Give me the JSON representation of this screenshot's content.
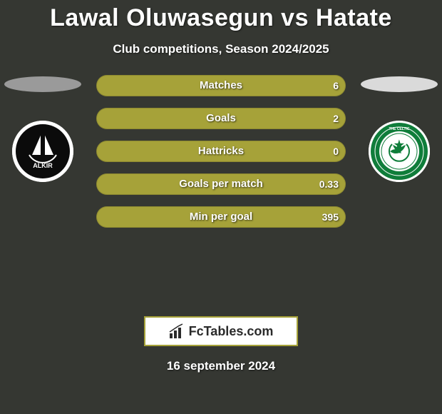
{
  "title": "Lawal Oluwasegun vs Hatate",
  "subtitle": "Club competitions, Season 2024/2025",
  "date": "16 september 2024",
  "logo_text": "FcTables.com",
  "background_color": "#353732",
  "left_player": {
    "oval_color": "#9a9a9a",
    "club_badge_bg": "#ffffff",
    "club_badge_inner": "#0b0b0b",
    "club_name": "FALKIRK"
  },
  "right_player": {
    "oval_color": "#dadada",
    "club_badge_bg": "#ffffff",
    "club_badge_ring": "#0f7d3a",
    "club_badge_inner": "#ffffff"
  },
  "bars": {
    "track_color": "#a6a239",
    "left_fill_color": "#a6a239",
    "right_fill_color": "#a6a239",
    "height": 30,
    "radius": 15,
    "gap": 16,
    "label_fontsize": 15,
    "value_fontsize": 14,
    "rows": [
      {
        "label": "Matches",
        "left_val": "",
        "right_val": "6",
        "left_pct": 0,
        "right_pct": 0
      },
      {
        "label": "Goals",
        "left_val": "",
        "right_val": "2",
        "left_pct": 0,
        "right_pct": 0
      },
      {
        "label": "Hattricks",
        "left_val": "",
        "right_val": "0",
        "left_pct": 0,
        "right_pct": 0
      },
      {
        "label": "Goals per match",
        "left_val": "",
        "right_val": "0.33",
        "left_pct": 0,
        "right_pct": 0
      },
      {
        "label": "Min per goal",
        "left_val": "",
        "right_val": "395",
        "left_pct": 0,
        "right_pct": 0
      }
    ]
  }
}
